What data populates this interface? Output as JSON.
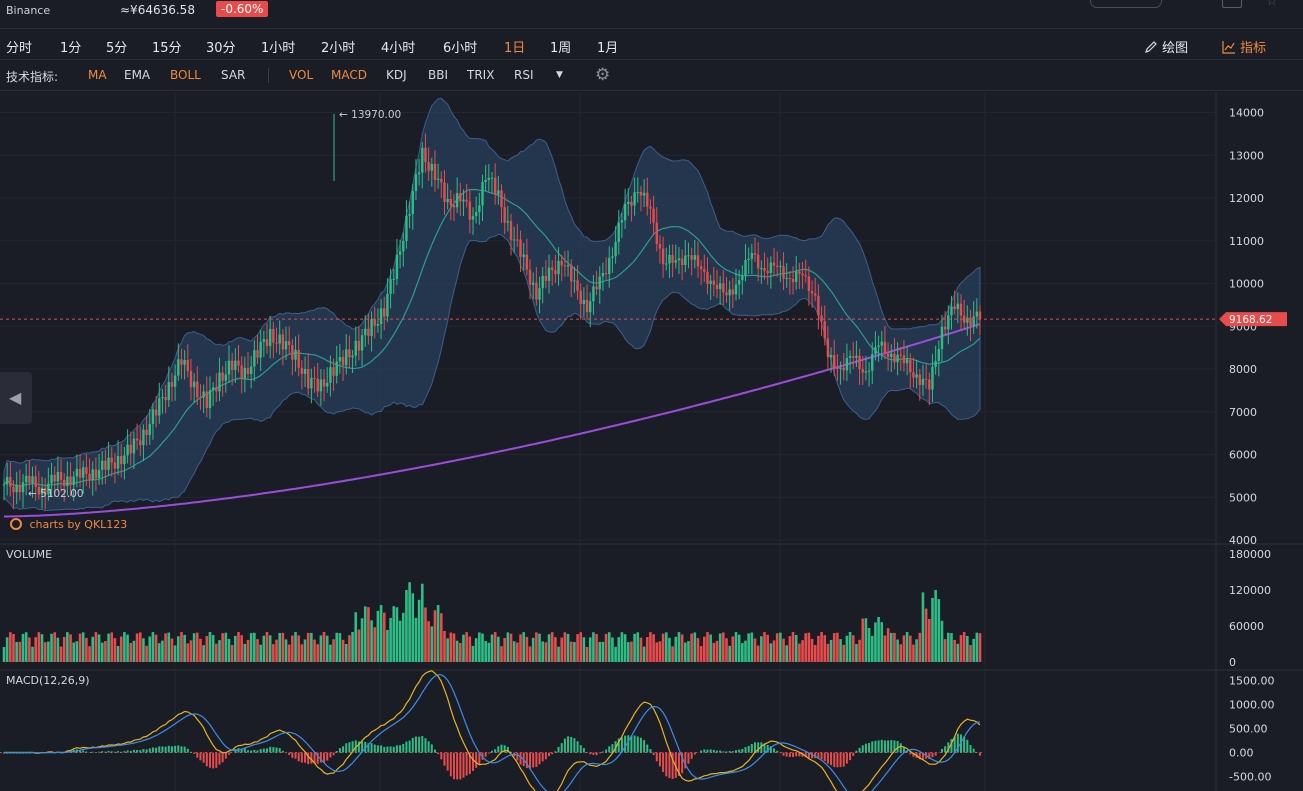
{
  "header": {
    "exchange": "Binance",
    "price": "≈¥64636.58",
    "change": "-0.60%"
  },
  "periods": [
    "分时",
    "1分",
    "5分",
    "15分",
    "30分",
    "1小时",
    "2小时",
    "4小时",
    "6小时",
    "1日",
    "1周",
    "1月"
  ],
  "active_period": "1日",
  "tools": {
    "draw": "绘图",
    "indicators": "指标"
  },
  "indicator_bar": {
    "label": "技术指标:",
    "main": [
      {
        "name": "MA",
        "on": true
      },
      {
        "name": "EMA",
        "on": false
      },
      {
        "name": "BOLL",
        "on": true
      },
      {
        "name": "SAR",
        "on": false
      }
    ],
    "sub": [
      {
        "name": "VOL",
        "on": true
      },
      {
        "name": "MACD",
        "on": true
      },
      {
        "name": "KDJ",
        "on": false
      },
      {
        "name": "BBI",
        "on": false
      },
      {
        "name": "TRIX",
        "on": false
      },
      {
        "name": "RSI",
        "on": false
      }
    ]
  },
  "watermark": "charts by QKL123",
  "colors": {
    "up": "#2ebd85",
    "down": "#e84b4b",
    "ma_long": "#9b4ddc",
    "boll_mid": "#2a9d8f",
    "boll_band": "#2c4a70",
    "macd_dif": "#e6b422",
    "macd_dea": "#3a8ee6",
    "accent": "#f08a3c"
  },
  "chart_data": [
    {
      "type": "candlestick",
      "title": "",
      "last_price": 9168.62,
      "last_price_label": "9168.62",
      "high_label": "13970.00",
      "low_label": "5102.00",
      "y_ticks": [
        4000,
        5000,
        6000,
        7000,
        8000,
        9000,
        10000,
        11000,
        12000,
        13000,
        14000
      ],
      "ylim": [
        4000,
        14200
      ],
      "series_approx_closes": [
        5300,
        5280,
        5350,
        5200,
        5400,
        5450,
        5500,
        5600,
        5700,
        5900,
        6100,
        6500,
        7000,
        7600,
        8200,
        7600,
        7200,
        7800,
        8100,
        7900,
        8400,
        8800,
        8600,
        8300,
        7700,
        7600,
        8000,
        8300,
        8600,
        9000,
        9400,
        10500,
        11800,
        13000,
        12600,
        11800,
        12100,
        11400,
        12600,
        12000,
        11200,
        10500,
        9800,
        10200,
        10600,
        9900,
        9500,
        10000,
        10800,
        11700,
        12300,
        11600,
        10600,
        10400,
        10800,
        10200,
        10100,
        9600,
        10200,
        10600,
        10400,
        10300,
        10200,
        10100,
        9800,
        8200,
        8100,
        8200,
        8000,
        8500,
        8400,
        8100,
        7900,
        7500,
        9000,
        9400,
        9200,
        9168
      ]
    },
    {
      "type": "bar",
      "title": "VOLUME",
      "y_ticks": [
        0,
        60000,
        120000,
        180000
      ],
      "ylim": [
        0,
        180000
      ]
    },
    {
      "type": "line",
      "title": "MACD(12,26,9)",
      "y_ticks": [
        "1500.00",
        "1000.00",
        "500.00",
        "0.00",
        "-500.00"
      ],
      "ylim": [
        -550,
        1550
      ]
    }
  ]
}
